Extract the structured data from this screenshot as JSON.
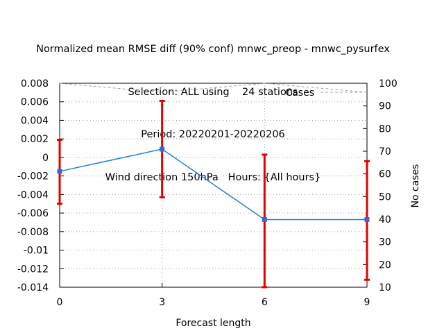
{
  "chart_data": {
    "type": "line",
    "title_lines": [
      "Normalized mean RMSE diff (90% conf) mnwc_preop - mnwc_pysurfex",
      "Selection: ALL using    24 stations",
      "Period: 20220201-20220206",
      "Wind direction 150hPa   Hours: {All hours}"
    ],
    "xlabel": "Forecast length",
    "ylabel": "",
    "y2label": "No cases",
    "x": [
      0,
      3,
      6,
      9
    ],
    "xticks": [
      "0",
      "3",
      "6",
      "9"
    ],
    "xlim": [
      0,
      9
    ],
    "ylim": [
      -0.014,
      0.008
    ],
    "yticks": [
      "0.008",
      "0.006",
      "0.004",
      "0.002",
      "0",
      "-0.002",
      "-0.004",
      "-0.006",
      "-0.008",
      "-0.01",
      "-0.012",
      "-0.014"
    ],
    "y2lim": [
      10,
      100
    ],
    "y2ticks": [
      "100",
      "90",
      "80",
      "70",
      "60",
      "50",
      "40",
      "30",
      "20",
      "10"
    ],
    "grid": true,
    "series": [
      {
        "values": [
          -0.0015,
          0.0009,
          -0.0067,
          -0.0067
        ],
        "ci_low": [
          -0.005,
          -0.0043,
          -0.014,
          -0.0132
        ],
        "ci_high": [
          0.0019,
          0.0061,
          0.0003,
          -0.0004
        ],
        "color": "#1f7fd8",
        "error_color": "#e00000"
      },
      {
        "name": "Cases",
        "axis": "right",
        "values": [
          100,
          96,
          100,
          96
        ],
        "color": "#a0a0a0",
        "style": "dashed"
      }
    ],
    "legend_position": "top-right"
  }
}
